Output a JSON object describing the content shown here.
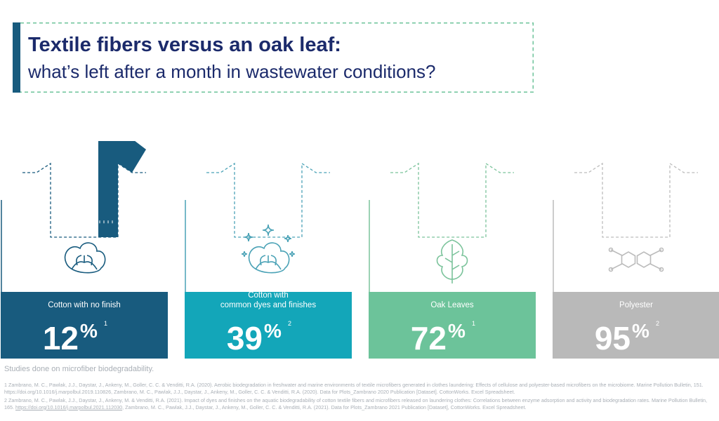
{
  "header": {
    "title": "Textile fibers versus an oak leaf:",
    "subtitle": "what’s left after a month in wastewater conditions?"
  },
  "colors": {
    "cotton_no_finish": "#185b7e",
    "cotton_dyed": "#4aa2b6",
    "oak": "#7bc39b",
    "polyester": "#bcbcbc",
    "title": "#1b2a6b",
    "footnote": "#a9afb6"
  },
  "chart_data": {
    "type": "bar",
    "categories": [
      "Cotton with no finish",
      "Cotton with\ncommon dyes and finishes",
      "Oak Leaves",
      "Polyester"
    ],
    "series": [
      {
        "values": [
          12,
          39,
          72,
          95
        ]
      }
    ],
    "value_labels": [
      "12%",
      "39%",
      "72%",
      "95%"
    ],
    "footnote_refs": [
      "1",
      "2",
      "1",
      "2"
    ],
    "unit": "%",
    "ylim": [
      0,
      100
    ],
    "icons": [
      "cotton-boll-icon",
      "sparkling-cotton-boll-icon",
      "oak-leaf-icon",
      "polymer-molecule-icon"
    ],
    "bar_colors": [
      "#185b7e",
      "#4aa2b6",
      "#7bc39b",
      "#bcbcbc"
    ],
    "panel_colors": [
      "#185b7e",
      "#13a6b9",
      "#6cc39a",
      "#b9b9b9"
    ]
  },
  "footer": {
    "intro": "Studies done on microfiber biodegradability.",
    "ref1": "1 Zambrano, M. C., Pawlak, J.J., Daystar, J., Ankeny, M., Goller, C. C. & Venditti, R.A. (2020). Aerobic biodegradation in freshwater and marine environments of textile microfibers generated in clothes laundering: Effects of cellulose and polyester-based microfibers on the microbiome. Marine Pollution Bulletin, 151. https://doi.org/10.1016/j.marpolbul.2019.110826, Zambrano, M. C., Pawlak, J.J., Daystar, J., Ankeny, M., Goller, C. C. & Venditti, R.A. (2020). Data for Plots_Zambrano 2020 Publication [Dataset]. CottonWorks. Excel Spreadsheet.",
    "ref2_pre": "2 Zambrano, M. C., Pawlak, J.J., Daystar, J., Ankeny, M. & Venditti, R.A. (2021). Impact of dyes and finishes on the aquatic biodegradability of cotton textile fibers and microfibers released on laundering clothes: Correlations between enzyme adsorption and activity and biodegradation rates. Marine Pollution Bulletin, 165.",
    "ref2_link": "https://doi.org/10.1016/j.marpolbul.2021.112030",
    "ref2_post": ", Zambrano, M. C., Pawlak, J.J., Daystar, J., Ankeny, M., Goller, C. C. & Venditti, R.A. (2021). Data for Plots_Zambrano 2021 Publication [Dataset], CottonWorks. Excel Spreadsheet."
  }
}
